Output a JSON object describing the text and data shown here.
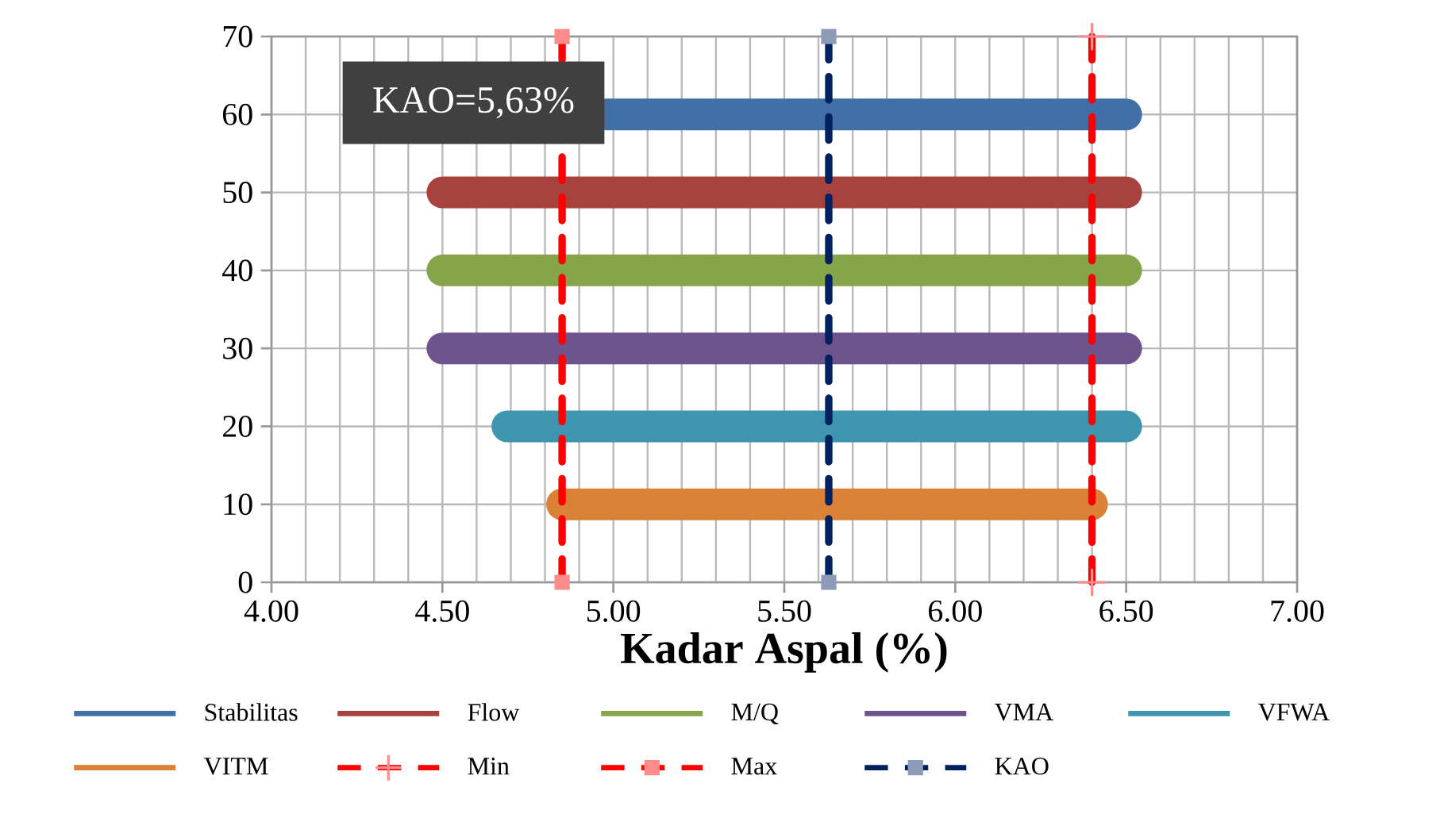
{
  "chart_data": {
    "type": "line",
    "xlabel": "Kadar Aspal (%)",
    "xlim": [
      4,
      7
    ],
    "ylim": [
      0,
      70
    ],
    "xticks": [
      {
        "value": 4,
        "label": "4.00"
      },
      {
        "value": 4.5,
        "label": "4.50"
      },
      {
        "value": 5,
        "label": "5.00"
      },
      {
        "value": 5.5,
        "label": "5.50"
      },
      {
        "value": 6,
        "label": "6.00"
      },
      {
        "value": 6.5,
        "label": "6.50"
      },
      {
        "value": 7,
        "label": "7.00"
      }
    ],
    "yticks": [
      0,
      10,
      20,
      30,
      40,
      50,
      60,
      70
    ],
    "grid": true,
    "legend": "bottom",
    "annotations": [
      "KAO=5,63%"
    ],
    "series": [
      {
        "name": "Stabilitas",
        "color": "#416fa6",
        "x": [
          4.98,
          6.5
        ],
        "values": [
          60,
          60
        ],
        "line_style": "solid"
      },
      {
        "name": "Flow",
        "color": "#a8423f",
        "x": [
          4.5,
          6.5
        ],
        "values": [
          50,
          50
        ],
        "line_style": "solid"
      },
      {
        "name": "M/Q",
        "color": "#86a44a",
        "x": [
          4.5,
          6.5
        ],
        "values": [
          40,
          40
        ],
        "line_style": "solid"
      },
      {
        "name": "VMA",
        "color": "#6e548d",
        "x": [
          4.5,
          6.5
        ],
        "values": [
          30,
          30
        ],
        "line_style": "solid"
      },
      {
        "name": "VFWA",
        "color": "#3d96ae",
        "x": [
          4.69,
          6.5
        ],
        "values": [
          20,
          20
        ],
        "line_style": "solid"
      },
      {
        "name": "VITM",
        "color": "#da8137",
        "x": [
          4.85,
          6.4
        ],
        "values": [
          10,
          10
        ],
        "line_style": "solid"
      },
      {
        "name": "Min",
        "color": "#ff0000",
        "x": [
          6.4,
          6.4
        ],
        "values": [
          0,
          70
        ],
        "line_style": "dashed",
        "marker": "cross"
      },
      {
        "name": "Max",
        "color": "#ff0000",
        "x": [
          4.85,
          4.85
        ],
        "values": [
          0,
          70
        ],
        "line_style": "dashed",
        "marker": "square"
      },
      {
        "name": "KAO",
        "color": "#002060",
        "x": [
          5.63,
          5.63
        ],
        "values": [
          0,
          70
        ],
        "line_style": "dashed",
        "marker": "square"
      }
    ]
  }
}
